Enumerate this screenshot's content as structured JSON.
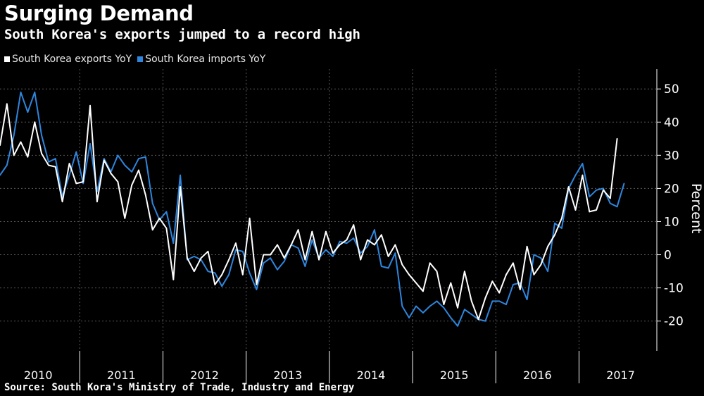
{
  "title": "Surging Demand",
  "subtitle": "South Korea's exports jumped to a record high",
  "source": "Source: South Kora's Ministry of Trade, Industry and Energy",
  "colors": {
    "background": "#000000",
    "exports": "#ffffff",
    "imports": "#2e86de",
    "grid": "#5a5a5a"
  },
  "chart_data": {
    "type": "line",
    "ylabel": "Percent",
    "ylim": [
      -29,
      56
    ],
    "yticks": [
      -20,
      -10,
      0,
      10,
      20,
      30,
      40,
      50
    ],
    "ytick_labels": [
      "-20",
      "-10",
      "0",
      "10",
      "20",
      "30",
      "40",
      "50"
    ],
    "years": [
      "2010",
      "2011",
      "2012",
      "2013",
      "2014",
      "2015",
      "2016",
      "2017"
    ],
    "x_start": "2010-01",
    "grid": true,
    "legend_position": "top-left",
    "series": [
      {
        "name": "South Korea exports YoY",
        "color": "#ffffff",
        "values": [
          33,
          45.5,
          30,
          34,
          29.5,
          40,
          30.5,
          27,
          26.5,
          16,
          27.5,
          21.5,
          22,
          45,
          16,
          28.5,
          24.5,
          22,
          11,
          21,
          25.5,
          18,
          7.5,
          11,
          8,
          -7.5,
          20.5,
          -1,
          -5,
          -1,
          1,
          -9,
          -6,
          -1.5,
          3.5,
          -6,
          11,
          -9,
          0,
          0,
          3,
          -1,
          3,
          7.5,
          -1.5,
          7,
          -1.5,
          7,
          0.5,
          3,
          4.5,
          9,
          -1.5,
          4.5,
          3,
          6,
          -0.5,
          3,
          -3,
          -6,
          -8.5,
          -11,
          -2.5,
          -5,
          -15,
          -8.5,
          -16,
          -5,
          -14,
          -19.5,
          -13,
          -8,
          -11.5,
          -6,
          -2.5,
          -10.5,
          2.5,
          -6,
          -3,
          2.5,
          6,
          11,
          20.5,
          13.5,
          24,
          13,
          13.5,
          19.5,
          17,
          35
        ]
      },
      {
        "name": "South Korea imports YoY",
        "color": "#2e86de",
        "values": [
          24,
          27,
          36,
          49,
          43,
          49,
          36,
          28,
          29,
          17.5,
          24,
          31,
          21.5,
          33.5,
          19,
          29,
          25,
          30,
          27,
          25,
          29,
          29.5,
          15.5,
          10.5,
          13,
          3.5,
          24,
          -1.5,
          -0.5,
          -1.5,
          -5,
          -5.5,
          -9.5,
          -6,
          1.5,
          1,
          -5.5,
          -10.5,
          -2.5,
          -1,
          -4.5,
          -2,
          3,
          2,
          -3.5,
          4.5,
          -1,
          1.5,
          -0.5,
          4,
          3.5,
          5,
          0.5,
          2.5,
          7.5,
          -3.5,
          -4,
          0.5,
          -15.5,
          -19,
          -15.5,
          -17.5,
          -15.5,
          -14,
          -16,
          -19,
          -21.5,
          -16.5,
          -18,
          -19.5,
          -20,
          -14,
          -14,
          -15,
          -9,
          -8.5,
          -13.5,
          0,
          -1,
          -5,
          9.5,
          8,
          20,
          24,
          27.5,
          17.5,
          19.5,
          20,
          15.5,
          14.5,
          21.5
        ]
      }
    ]
  }
}
